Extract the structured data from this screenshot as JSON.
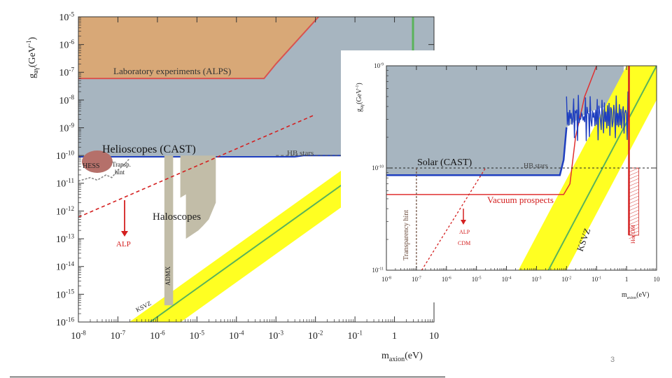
{
  "page": {
    "number": "3"
  },
  "chart_data": [
    {
      "type": "area",
      "ylabel_main": "g",
      "ylabel_sub": "aγ",
      "ylabel_unit": "(GeV",
      "ylabel_unit_exp": "-1",
      "ylabel_close": ")",
      "xlabel_main": "m",
      "xlabel_sub": "axion",
      "xlabel_unit": "(eV)",
      "xscale": "log",
      "yscale": "log",
      "xlim": [
        1e-08,
        10
      ],
      "ylim": [
        1e-16,
        1e-05
      ],
      "x_ticks": [
        {
          "exp": -8,
          "base": "10",
          "sup": "-8"
        },
        {
          "exp": -7,
          "base": "10",
          "sup": "-7"
        },
        {
          "exp": -6,
          "base": "10",
          "sup": "-6"
        },
        {
          "exp": -5,
          "base": "10",
          "sup": "-5"
        },
        {
          "exp": -4,
          "base": "10",
          "sup": "-4"
        },
        {
          "exp": -3,
          "base": "10",
          "sup": "-3"
        },
        {
          "exp": -2,
          "base": "10",
          "sup": "-2"
        },
        {
          "exp": -1,
          "base": "10",
          "sup": "-1"
        },
        {
          "exp": 0,
          "base": "1",
          "sup": ""
        },
        {
          "exp": 1,
          "base": "10",
          "sup": ""
        }
      ],
      "y_ticks": [
        {
          "exp": -5,
          "base": "10",
          "sup": "-5"
        },
        {
          "exp": -6,
          "base": "10",
          "sup": "-6"
        },
        {
          "exp": -7,
          "base": "10",
          "sup": "-7"
        },
        {
          "exp": -8,
          "base": "10",
          "sup": "-8"
        },
        {
          "exp": -9,
          "base": "10",
          "sup": "-9"
        },
        {
          "exp": -10,
          "base": "10",
          "sup": "-10"
        },
        {
          "exp": -11,
          "base": "10",
          "sup": "-11"
        },
        {
          "exp": -12,
          "base": "10",
          "sup": "-12"
        },
        {
          "exp": -13,
          "base": "10",
          "sup": "-13"
        },
        {
          "exp": -14,
          "base": "10",
          "sup": "-14"
        },
        {
          "exp": -15,
          "base": "10",
          "sup": "-15"
        },
        {
          "exp": -16,
          "base": "10",
          "sup": "-16"
        }
      ],
      "labels": {
        "lab": "Laboratory experiments (ALPS)",
        "helio": "Helioscopes (CAST)",
        "hb": "HB stars",
        "hess": "HESS",
        "transp": "Transp.",
        "hint": "hint",
        "halo": "Haloscopes",
        "admx": "ADMX",
        "ksvz": "KSVZ",
        "alp": "ALP"
      },
      "regions": {
        "laboratory": {
          "color": "#d8a877",
          "edge": "#d9534f",
          "boundary": [
            [
              1e-08,
              6e-08
            ],
            [
              0.0005,
              6e-08
            ],
            [
              0.001,
              2e-07
            ],
            [
              0.012,
              1e-05
            ],
            [
              1e-08,
              1e-05
            ]
          ]
        },
        "cast": {
          "color": "#a7b5c0",
          "edge": "#1f3fbf",
          "boundary": [
            [
              1e-08,
              9e-11
            ],
            [
              0.003,
              9e-11
            ],
            [
              0.005,
              1e-10
            ],
            [
              0.3,
              1e-10
            ],
            [
              1.5,
              1e-09
            ],
            [
              10,
              1e-09
            ],
            [
              10,
              1e-05
            ],
            [
              1e-08,
              1e-05
            ]
          ]
        },
        "hb_stars_g": 1e-10,
        "haloscopes": {
          "color": "#c2bda8",
          "x_start": 2e-06,
          "x_end": 3e-05
        },
        "admx_x": [
          1.5e-06,
          2.5e-06
        ],
        "admx_g": [
          1e-10,
          4e-16
        ],
        "ksvz_color": "#ffff22",
        "ksvz_line_color": "#5ab35a"
      },
      "series": [
        {
          "name": "KSVZ",
          "x": [
            2e-07,
            1
          ],
          "y": [
            3e-17,
            2e-10
          ]
        },
        {
          "name": "ALP",
          "x": [
            1e-08,
            0.01
          ],
          "y": [
            6e-13,
            3e-09
          ]
        }
      ]
    },
    {
      "type": "area",
      "ylabel_main": "g",
      "ylabel_sub": "aγ",
      "ylabel_unit": "(GeV",
      "ylabel_unit_exp": "-1",
      "ylabel_close": ")",
      "xlabel_main": "m",
      "xlabel_sub": "axion",
      "xlabel_unit": "(eV)",
      "xscale": "log",
      "yscale": "log",
      "xlim": [
        1e-08,
        10
      ],
      "ylim": [
        1e-11,
        1e-09
      ],
      "x_ticks": [
        {
          "exp": -8,
          "base": "10",
          "sup": "-8"
        },
        {
          "exp": -7,
          "base": "10",
          "sup": "-7"
        },
        {
          "exp": -6,
          "base": "10",
          "sup": "-6"
        },
        {
          "exp": -5,
          "base": "10",
          "sup": "-5"
        },
        {
          "exp": -4,
          "base": "10",
          "sup": "-4"
        },
        {
          "exp": -3,
          "base": "10",
          "sup": "-3"
        },
        {
          "exp": -2,
          "base": "10",
          "sup": "-2"
        },
        {
          "exp": -1,
          "base": "10",
          "sup": "-1"
        },
        {
          "exp": 0,
          "base": "1",
          "sup": ""
        },
        {
          "exp": 1,
          "base": "10",
          "sup": ""
        }
      ],
      "y_ticks": [
        {
          "exp": -9,
          "base": "10",
          "sup": "-9"
        },
        {
          "exp": -10,
          "base": "10",
          "sup": "-10"
        },
        {
          "exp": -11,
          "base": "10",
          "sup": "-11"
        }
      ],
      "labels": {
        "solar": "Solar (CAST)",
        "hb": "HB stars",
        "vacuum": "Vacuum prospects",
        "transparency": "Transparency hint",
        "alp": "ALP",
        "cdm": "CDM",
        "ksvz": "KSVZ",
        "hotdm": "Hot DM"
      },
      "regions": {
        "cast_g": 8.5e-11,
        "hb_stars_g": 1e-10,
        "vacuum_g": 5.5e-11,
        "transparency_x": 1e-07,
        "hot_dm_x": 1.2
      },
      "series": [
        {
          "name": "KSVZ",
          "x": [
            0.0025,
            10
          ],
          "y": [
            1e-11,
            1e-09
          ]
        },
        {
          "name": "ALP CDM",
          "x": [
            1.5e-07,
            2e-05
          ],
          "y": [
            1e-11,
            1e-10
          ]
        }
      ]
    }
  ]
}
